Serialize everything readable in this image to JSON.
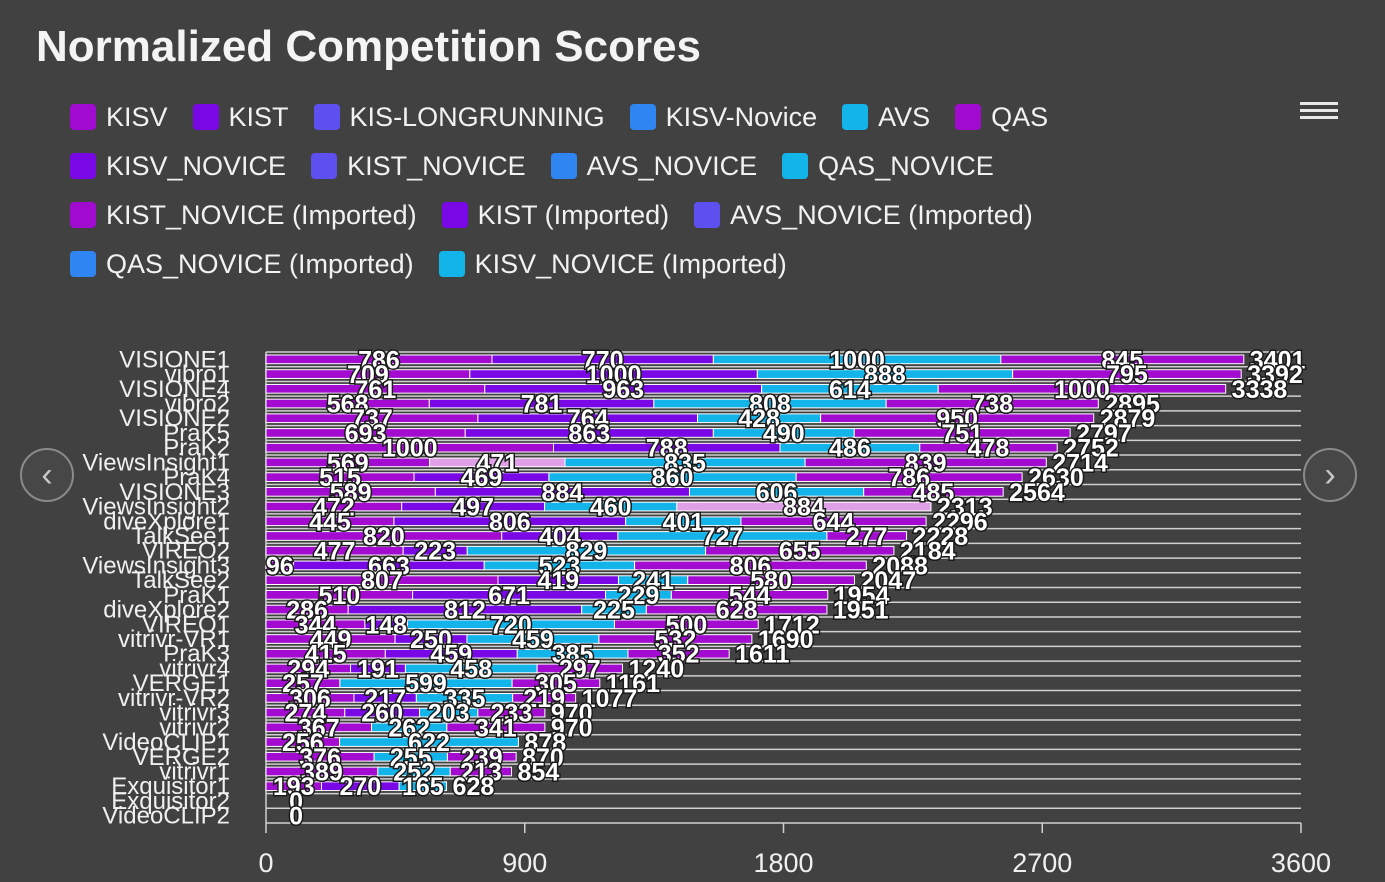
{
  "title": "Normalized Competition Scores",
  "colors": {
    "background": "#414141",
    "row_line": "#d0d0d0",
    "bar_border": "#ffffff"
  },
  "icons": {
    "menu": "hamburger-menu-icon",
    "prev": "chevron-left-icon",
    "next": "chevron-right-icon"
  },
  "navigation": {
    "prev_symbol": "‹",
    "next_symbol": "›"
  },
  "legend": [
    {
      "label": "KISV",
      "color": "#a10bd0"
    },
    {
      "label": "KIST",
      "color": "#7a08e6"
    },
    {
      "label": "KIS-LONGRUNNING",
      "color": "#5d4ff0"
    },
    {
      "label": "KISV-Novice",
      "color": "#2f86f2"
    },
    {
      "label": "AVS",
      "color": "#12b4ea"
    },
    {
      "label": "QAS",
      "color": "#a10bd0"
    },
    {
      "label": "KISV_NOVICE",
      "color": "#7a08e6"
    },
    {
      "label": "KIST_NOVICE",
      "color": "#5d4ff0"
    },
    {
      "label": "AVS_NOVICE",
      "color": "#2f86f2"
    },
    {
      "label": "QAS_NOVICE",
      "color": "#12b4ea"
    },
    {
      "label": "KIST_NOVICE (Imported)",
      "color": "#a10bd0"
    },
    {
      "label": "KIST (Imported)",
      "color": "#7a08e6"
    },
    {
      "label": "AVS_NOVICE (Imported)",
      "color": "#5d4ff0"
    },
    {
      "label": "QAS_NOVICE (Imported)",
      "color": "#2f86f2"
    },
    {
      "label": "KISV_NOVICE (Imported)",
      "color": "#12b4ea"
    }
  ],
  "chart_data": {
    "type": "bar",
    "orientation": "horizontal",
    "stacked": true,
    "xlim": [
      0,
      3600
    ],
    "x_ticks": [
      0,
      900,
      1800,
      2700,
      3600
    ],
    "grid": false,
    "legend_position": "top",
    "categories": [
      "VISIONE1",
      "vibro1",
      "VISIONE4",
      "vibro2",
      "VISIONE2",
      "PraK5",
      "PraK2",
      "ViewsInsight1",
      "PraK4",
      "VISIONE3",
      "ViewsInsight2",
      "diveXplore1",
      "TalkSee1",
      "VIREO2",
      "ViewsInsight3",
      "TalkSee2",
      "PraK1",
      "diveXplore2",
      "VIREO1",
      "vitrivr-VR1",
      "PraK3",
      "vitrivr4",
      "VERGE1",
      "vitrivr-VR2",
      "vitrivr3",
      "vitrivr2",
      "VideoCLIP1",
      "VERGE2",
      "vitrivr1",
      "Exquisitor1",
      "Exquisitor2",
      "VideoCLIP2"
    ],
    "segments": [
      [
        786,
        770,
        1000,
        845
      ],
      [
        709,
        1000,
        888,
        795
      ],
      [
        761,
        963,
        614,
        1000
      ],
      [
        568,
        781,
        808,
        738
      ],
      [
        737,
        764,
        428,
        950
      ],
      [
        693,
        863,
        490,
        751
      ],
      [
        1000,
        788,
        486,
        478
      ],
      [
        569,
        471,
        835,
        839
      ],
      [
        515,
        469,
        860,
        786
      ],
      [
        589,
        884,
        606,
        485
      ],
      [
        472,
        497,
        460,
        884
      ],
      [
        445,
        806,
        401,
        644
      ],
      [
        820,
        404,
        727,
        277
      ],
      [
        477,
        223,
        829,
        655
      ],
      [
        96,
        663,
        523,
        806
      ],
      [
        807,
        419,
        241,
        580
      ],
      [
        510,
        671,
        229,
        544
      ],
      [
        286,
        812,
        225,
        628
      ],
      [
        344,
        148,
        720,
        500
      ],
      [
        449,
        250,
        459,
        532
      ],
      [
        415,
        459,
        385,
        352
      ],
      [
        294,
        191,
        458,
        297
      ],
      [
        257,
        599,
        305
      ],
      [
        306,
        217,
        335,
        219
      ],
      [
        274,
        260,
        203,
        233
      ],
      [
        367,
        262,
        341
      ],
      [
        256,
        622
      ],
      [
        376,
        255,
        239
      ],
      [
        389,
        252,
        213
      ],
      [
        193,
        270,
        165
      ],
      [
        0
      ],
      [
        0
      ]
    ],
    "segment_colors": [
      [
        "#a30cd0",
        "#7a08e6",
        "#12b4ea",
        "#a30cd0"
      ],
      [
        "#a30cd0",
        "#7a08e6",
        "#12b4ea",
        "#a30cd0"
      ],
      [
        "#a30cd0",
        "#7a08e6",
        "#12b4ea",
        "#a30cd0"
      ],
      [
        "#a30cd0",
        "#7a08e6",
        "#12b4ea",
        "#a30cd0"
      ],
      [
        "#a30cd0",
        "#7a08e6",
        "#12b4ea",
        "#a30cd0"
      ],
      [
        "#a30cd0",
        "#7a08e6",
        "#12b4ea",
        "#a30cd0"
      ],
      [
        "#a30cd0",
        "#7a08e6",
        "#12b4ea",
        "#a30cd0"
      ],
      [
        "#a30cd0",
        "#e0a0e8",
        "#12b4ea",
        "#a30cd0"
      ],
      [
        "#a30cd0",
        "#7a08e6",
        "#12b4ea",
        "#a30cd0"
      ],
      [
        "#a30cd0",
        "#7a08e6",
        "#12b4ea",
        "#a30cd0"
      ],
      [
        "#a30cd0",
        "#7a08e6",
        "#12b4ea",
        "#e0a0e8"
      ],
      [
        "#a30cd0",
        "#7a08e6",
        "#12b4ea",
        "#a30cd0"
      ],
      [
        "#a30cd0",
        "#7a08e6",
        "#12b4ea",
        "#a30cd0"
      ],
      [
        "#a30cd0",
        "#7a08e6",
        "#12b4ea",
        "#a30cd0"
      ],
      [
        "#a30cd0",
        "#7a08e6",
        "#12b4ea",
        "#a30cd0"
      ],
      [
        "#a30cd0",
        "#7a08e6",
        "#12b4ea",
        "#a30cd0"
      ],
      [
        "#a30cd0",
        "#7a08e6",
        "#12b4ea",
        "#a30cd0"
      ],
      [
        "#a30cd0",
        "#7a08e6",
        "#12b4ea",
        "#a30cd0"
      ],
      [
        "#a30cd0",
        "#7a08e6",
        "#12b4ea",
        "#a30cd0"
      ],
      [
        "#a30cd0",
        "#7a08e6",
        "#12b4ea",
        "#a30cd0"
      ],
      [
        "#a30cd0",
        "#7a08e6",
        "#12b4ea",
        "#a30cd0"
      ],
      [
        "#a30cd0",
        "#7a08e6",
        "#12b4ea",
        "#a30cd0"
      ],
      [
        "#a30cd0",
        "#12b4ea",
        "#a30cd0"
      ],
      [
        "#a30cd0",
        "#7a08e6",
        "#12b4ea",
        "#a30cd0"
      ],
      [
        "#a30cd0",
        "#7a08e6",
        "#12b4ea",
        "#a30cd0"
      ],
      [
        "#a30cd0",
        "#12b4ea",
        "#a30cd0"
      ],
      [
        "#a30cd0",
        "#12b4ea"
      ],
      [
        "#a30cd0",
        "#12b4ea",
        "#a30cd0"
      ],
      [
        "#a30cd0",
        "#12b4ea",
        "#a30cd0"
      ],
      [
        "#a30cd0",
        "#7a08e6",
        "#12b4ea"
      ],
      [
        "#a30cd0"
      ],
      [
        "#a30cd0"
      ]
    ],
    "totals": [
      3401,
      3392,
      3338,
      2895,
      2879,
      2797,
      2752,
      2714,
      2630,
      2564,
      2313,
      2296,
      2228,
      2184,
      2088,
      2047,
      1954,
      1951,
      1712,
      1690,
      1611,
      1240,
      1161,
      1077,
      970,
      970,
      878,
      870,
      854,
      628,
      0,
      0
    ]
  }
}
